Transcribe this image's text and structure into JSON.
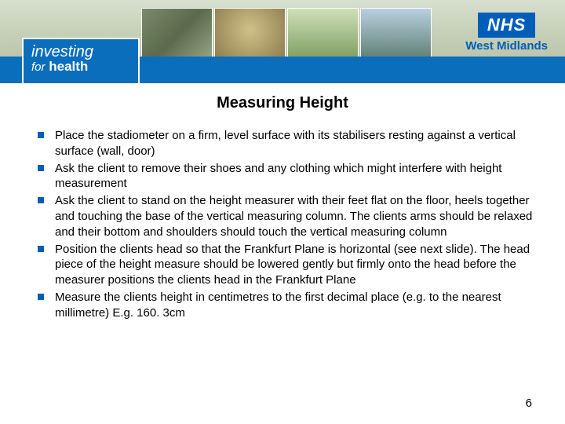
{
  "banner": {
    "nhs_logo_text": "NHS",
    "nhs_region": "West Midlands",
    "investing_line1": "investing",
    "investing_for": "for",
    "investing_line2": "health"
  },
  "title": "Measuring Height",
  "bullets": [
    "Place the stadiometer on a firm, level surface with its stabilisers resting against a vertical surface (wall, door)",
    "Ask the client to remove their shoes and any clothing which might interfere with height measurement",
    "Ask the client to stand on the height measurer with their feet flat on the floor, heels together and touching the base of the vertical measuring column.  The clients arms should be relaxed and their bottom and shoulders should touch the vertical measuring column",
    "Position the clients head so that the Frankfurt Plane is horizontal (see next slide). The head piece of the height measure should be lowered gently but firmly onto the head before the measurer positions the clients head in the Frankfurt Plane",
    "Measure the clients height in centimetres to the first decimal place (e.g. to the nearest millimetre) E.g. 160. 3cm"
  ],
  "page_number": "6",
  "colors": {
    "nhs_blue": "#005eb8",
    "strip_blue": "#0a6ebd",
    "bg": "#ffffff"
  }
}
